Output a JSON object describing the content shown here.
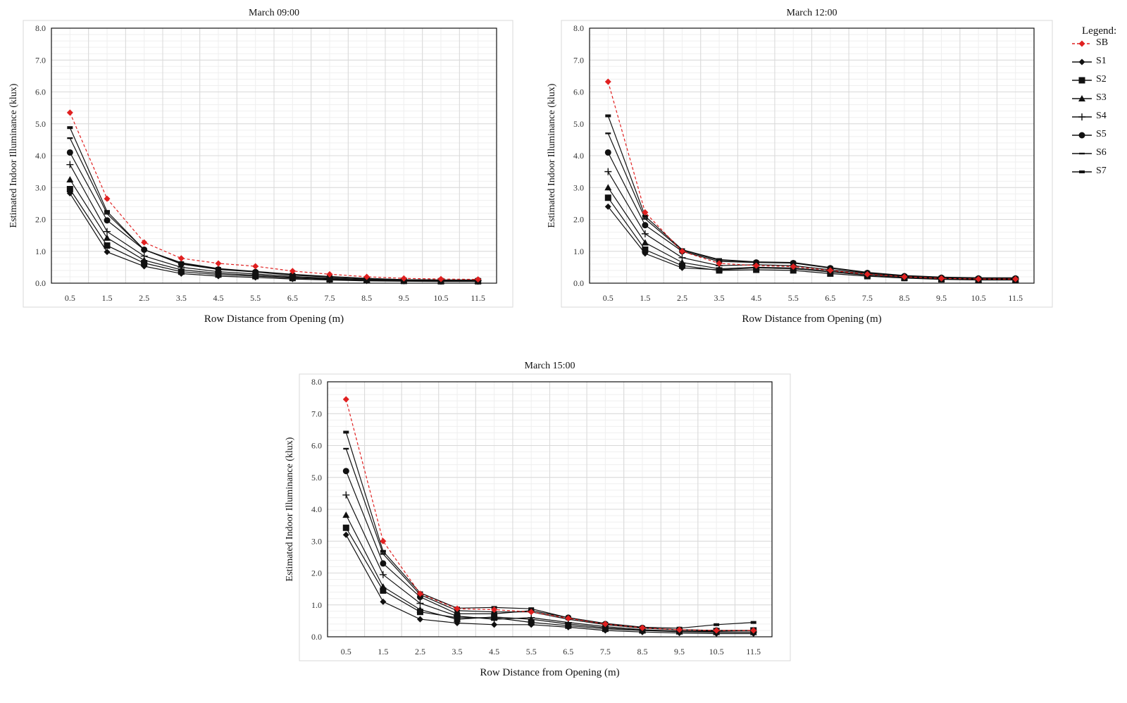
{
  "chart_data": [
    {
      "type": "line",
      "title": "March 09:00",
      "xlabel": "Row Distance from Opening (m)",
      "ylabel": "Estimated Indoor Illuminance (klux)",
      "x": [
        "0.5",
        "1.5",
        "2.5",
        "3.5",
        "4.5",
        "5.5",
        "6.5",
        "7.5",
        "8.5",
        "9.5",
        "10.5",
        "11.5"
      ],
      "ylim": [
        0,
        8
      ],
      "yticks": [
        "0.0",
        "1.0",
        "2.0",
        "3.0",
        "4.0",
        "5.0",
        "6.0",
        "7.0",
        "8.0"
      ],
      "grid": true,
      "series": [
        {
          "name": "SB",
          "values": [
            5.35,
            2.65,
            1.28,
            0.78,
            0.62,
            0.53,
            0.38,
            0.28,
            0.2,
            0.15,
            0.13,
            0.12
          ]
        },
        {
          "name": "S1",
          "values": [
            2.82,
            0.98,
            0.53,
            0.3,
            0.22,
            0.18,
            0.13,
            0.1,
            0.07,
            0.06,
            0.05,
            0.05
          ]
        },
        {
          "name": "S2",
          "values": [
            2.95,
            1.18,
            0.63,
            0.36,
            0.27,
            0.22,
            0.16,
            0.12,
            0.09,
            0.07,
            0.06,
            0.06
          ]
        },
        {
          "name": "S3",
          "values": [
            3.25,
            1.42,
            0.72,
            0.42,
            0.31,
            0.25,
            0.18,
            0.14,
            0.1,
            0.08,
            0.07,
            0.07
          ]
        },
        {
          "name": "S4",
          "values": [
            3.72,
            1.62,
            0.85,
            0.5,
            0.36,
            0.29,
            0.21,
            0.16,
            0.12,
            0.09,
            0.08,
            0.08
          ]
        },
        {
          "name": "S5",
          "values": [
            4.1,
            1.97,
            1.05,
            0.6,
            0.43,
            0.35,
            0.25,
            0.19,
            0.14,
            0.1,
            0.09,
            0.09
          ]
        },
        {
          "name": "S6",
          "values": [
            4.55,
            2.18,
            1.05,
            0.62,
            0.45,
            0.36,
            0.27,
            0.2,
            0.15,
            0.11,
            0.1,
            0.1
          ]
        },
        {
          "name": "S7",
          "values": [
            4.88,
            2.25,
            1.05,
            0.64,
            0.46,
            0.37,
            0.28,
            0.21,
            0.15,
            0.11,
            0.1,
            0.1
          ]
        }
      ]
    },
    {
      "type": "line",
      "title": "March 12:00",
      "xlabel": "Row Distance from Opening (m)",
      "ylabel": "Estimated Indoor Illuminance (klux)",
      "x": [
        "0.5",
        "1.5",
        "2.5",
        "3.5",
        "4.5",
        "5.5",
        "6.5",
        "7.5",
        "8.5",
        "9.5",
        "10.5",
        "11.5"
      ],
      "ylim": [
        0,
        8
      ],
      "yticks": [
        "0.0",
        "1.0",
        "2.0",
        "3.0",
        "4.0",
        "5.0",
        "6.0",
        "7.0",
        "8.0"
      ],
      "grid": true,
      "series": [
        {
          "name": "SB",
          "values": [
            6.32,
            2.22,
            1.0,
            0.62,
            0.55,
            0.52,
            0.4,
            0.28,
            0.2,
            0.15,
            0.13,
            0.13
          ]
        },
        {
          "name": "S1",
          "values": [
            2.4,
            0.93,
            0.48,
            0.42,
            0.48,
            0.45,
            0.35,
            0.25,
            0.18,
            0.14,
            0.12,
            0.12
          ]
        },
        {
          "name": "S2",
          "values": [
            2.68,
            1.05,
            0.55,
            0.4,
            0.42,
            0.4,
            0.3,
            0.22,
            0.16,
            0.12,
            0.1,
            0.1
          ]
        },
        {
          "name": "S3",
          "values": [
            3.0,
            1.27,
            0.65,
            0.45,
            0.5,
            0.48,
            0.38,
            0.26,
            0.18,
            0.14,
            0.12,
            0.12
          ]
        },
        {
          "name": "S4",
          "values": [
            3.5,
            1.55,
            0.8,
            0.55,
            0.58,
            0.55,
            0.42,
            0.3,
            0.2,
            0.15,
            0.13,
            0.13
          ]
        },
        {
          "name": "S5",
          "values": [
            4.1,
            1.82,
            1.0,
            0.68,
            0.65,
            0.63,
            0.47,
            0.32,
            0.22,
            0.17,
            0.15,
            0.15
          ]
        },
        {
          "name": "S6",
          "values": [
            4.7,
            2.02,
            1.03,
            0.72,
            0.66,
            0.64,
            0.48,
            0.33,
            0.23,
            0.18,
            0.16,
            0.16
          ]
        },
        {
          "name": "S7",
          "values": [
            5.25,
            2.1,
            1.05,
            0.74,
            0.67,
            0.65,
            0.49,
            0.34,
            0.24,
            0.19,
            0.17,
            0.17
          ]
        }
      ]
    },
    {
      "type": "line",
      "title": "March 15:00",
      "xlabel": "Row Distance from Opening (m)",
      "ylabel": "Estimated Indoor Illuminance (klux)",
      "x": [
        "0.5",
        "1.5",
        "2.5",
        "3.5",
        "4.5",
        "5.5",
        "6.5",
        "7.5",
        "8.5",
        "9.5",
        "10.5",
        "11.5"
      ],
      "ylim": [
        0,
        8
      ],
      "yticks": [
        "0.0",
        "1.0",
        "2.0",
        "3.0",
        "4.0",
        "5.0",
        "6.0",
        "7.0",
        "8.0"
      ],
      "grid": true,
      "series": [
        {
          "name": "SB",
          "values": [
            7.45,
            3.0,
            1.35,
            0.88,
            0.85,
            0.78,
            0.58,
            0.4,
            0.28,
            0.22,
            0.2,
            0.2
          ]
        },
        {
          "name": "S1",
          "values": [
            3.2,
            1.1,
            0.55,
            0.43,
            0.38,
            0.38,
            0.3,
            0.2,
            0.15,
            0.12,
            0.1,
            0.1
          ]
        },
        {
          "name": "S2",
          "values": [
            3.42,
            1.45,
            0.78,
            0.6,
            0.6,
            0.45,
            0.35,
            0.25,
            0.2,
            0.18,
            0.18,
            0.2
          ]
        },
        {
          "name": "S3",
          "values": [
            3.82,
            1.57,
            0.85,
            0.55,
            0.62,
            0.55,
            0.4,
            0.28,
            0.2,
            0.16,
            0.14,
            0.14
          ]
        },
        {
          "name": "S4",
          "values": [
            4.45,
            1.95,
            1.05,
            0.65,
            0.55,
            0.6,
            0.45,
            0.32,
            0.22,
            0.18,
            0.15,
            0.15
          ]
        },
        {
          "name": "S5",
          "values": [
            5.2,
            2.3,
            1.25,
            0.72,
            0.72,
            0.82,
            0.6,
            0.4,
            0.28,
            0.22,
            0.2,
            0.2
          ]
        },
        {
          "name": "S6",
          "values": [
            5.9,
            2.6,
            1.32,
            0.82,
            0.78,
            0.78,
            0.55,
            0.38,
            0.27,
            0.22,
            0.2,
            0.2
          ]
        },
        {
          "name": "S7",
          "values": [
            6.42,
            2.68,
            1.38,
            0.9,
            0.92,
            0.88,
            0.6,
            0.42,
            0.3,
            0.27,
            0.38,
            0.45
          ]
        }
      ]
    }
  ],
  "legend": {
    "title": "Legend:",
    "items": [
      {
        "label": "SB",
        "marker": "diamond",
        "color": "#e02020",
        "dashed": true
      },
      {
        "label": "S1",
        "marker": "diamond",
        "color": "#111111",
        "dashed": false
      },
      {
        "label": "S2",
        "marker": "square",
        "color": "#111111",
        "dashed": false
      },
      {
        "label": "S3",
        "marker": "triangle",
        "color": "#111111",
        "dashed": false
      },
      {
        "label": "S4",
        "marker": "plus",
        "color": "#111111",
        "dashed": false
      },
      {
        "label": "S5",
        "marker": "circle",
        "color": "#111111",
        "dashed": false
      },
      {
        "label": "S6",
        "marker": "dash",
        "color": "#111111",
        "dashed": false
      },
      {
        "label": "S7",
        "marker": "dash-thick",
        "color": "#111111",
        "dashed": false
      }
    ]
  },
  "colors": {
    "sb": "#e02020",
    "series": "#111111",
    "grid_major": "#d9d9d9",
    "grid_minor": "#efefef",
    "frame": "#111111"
  }
}
